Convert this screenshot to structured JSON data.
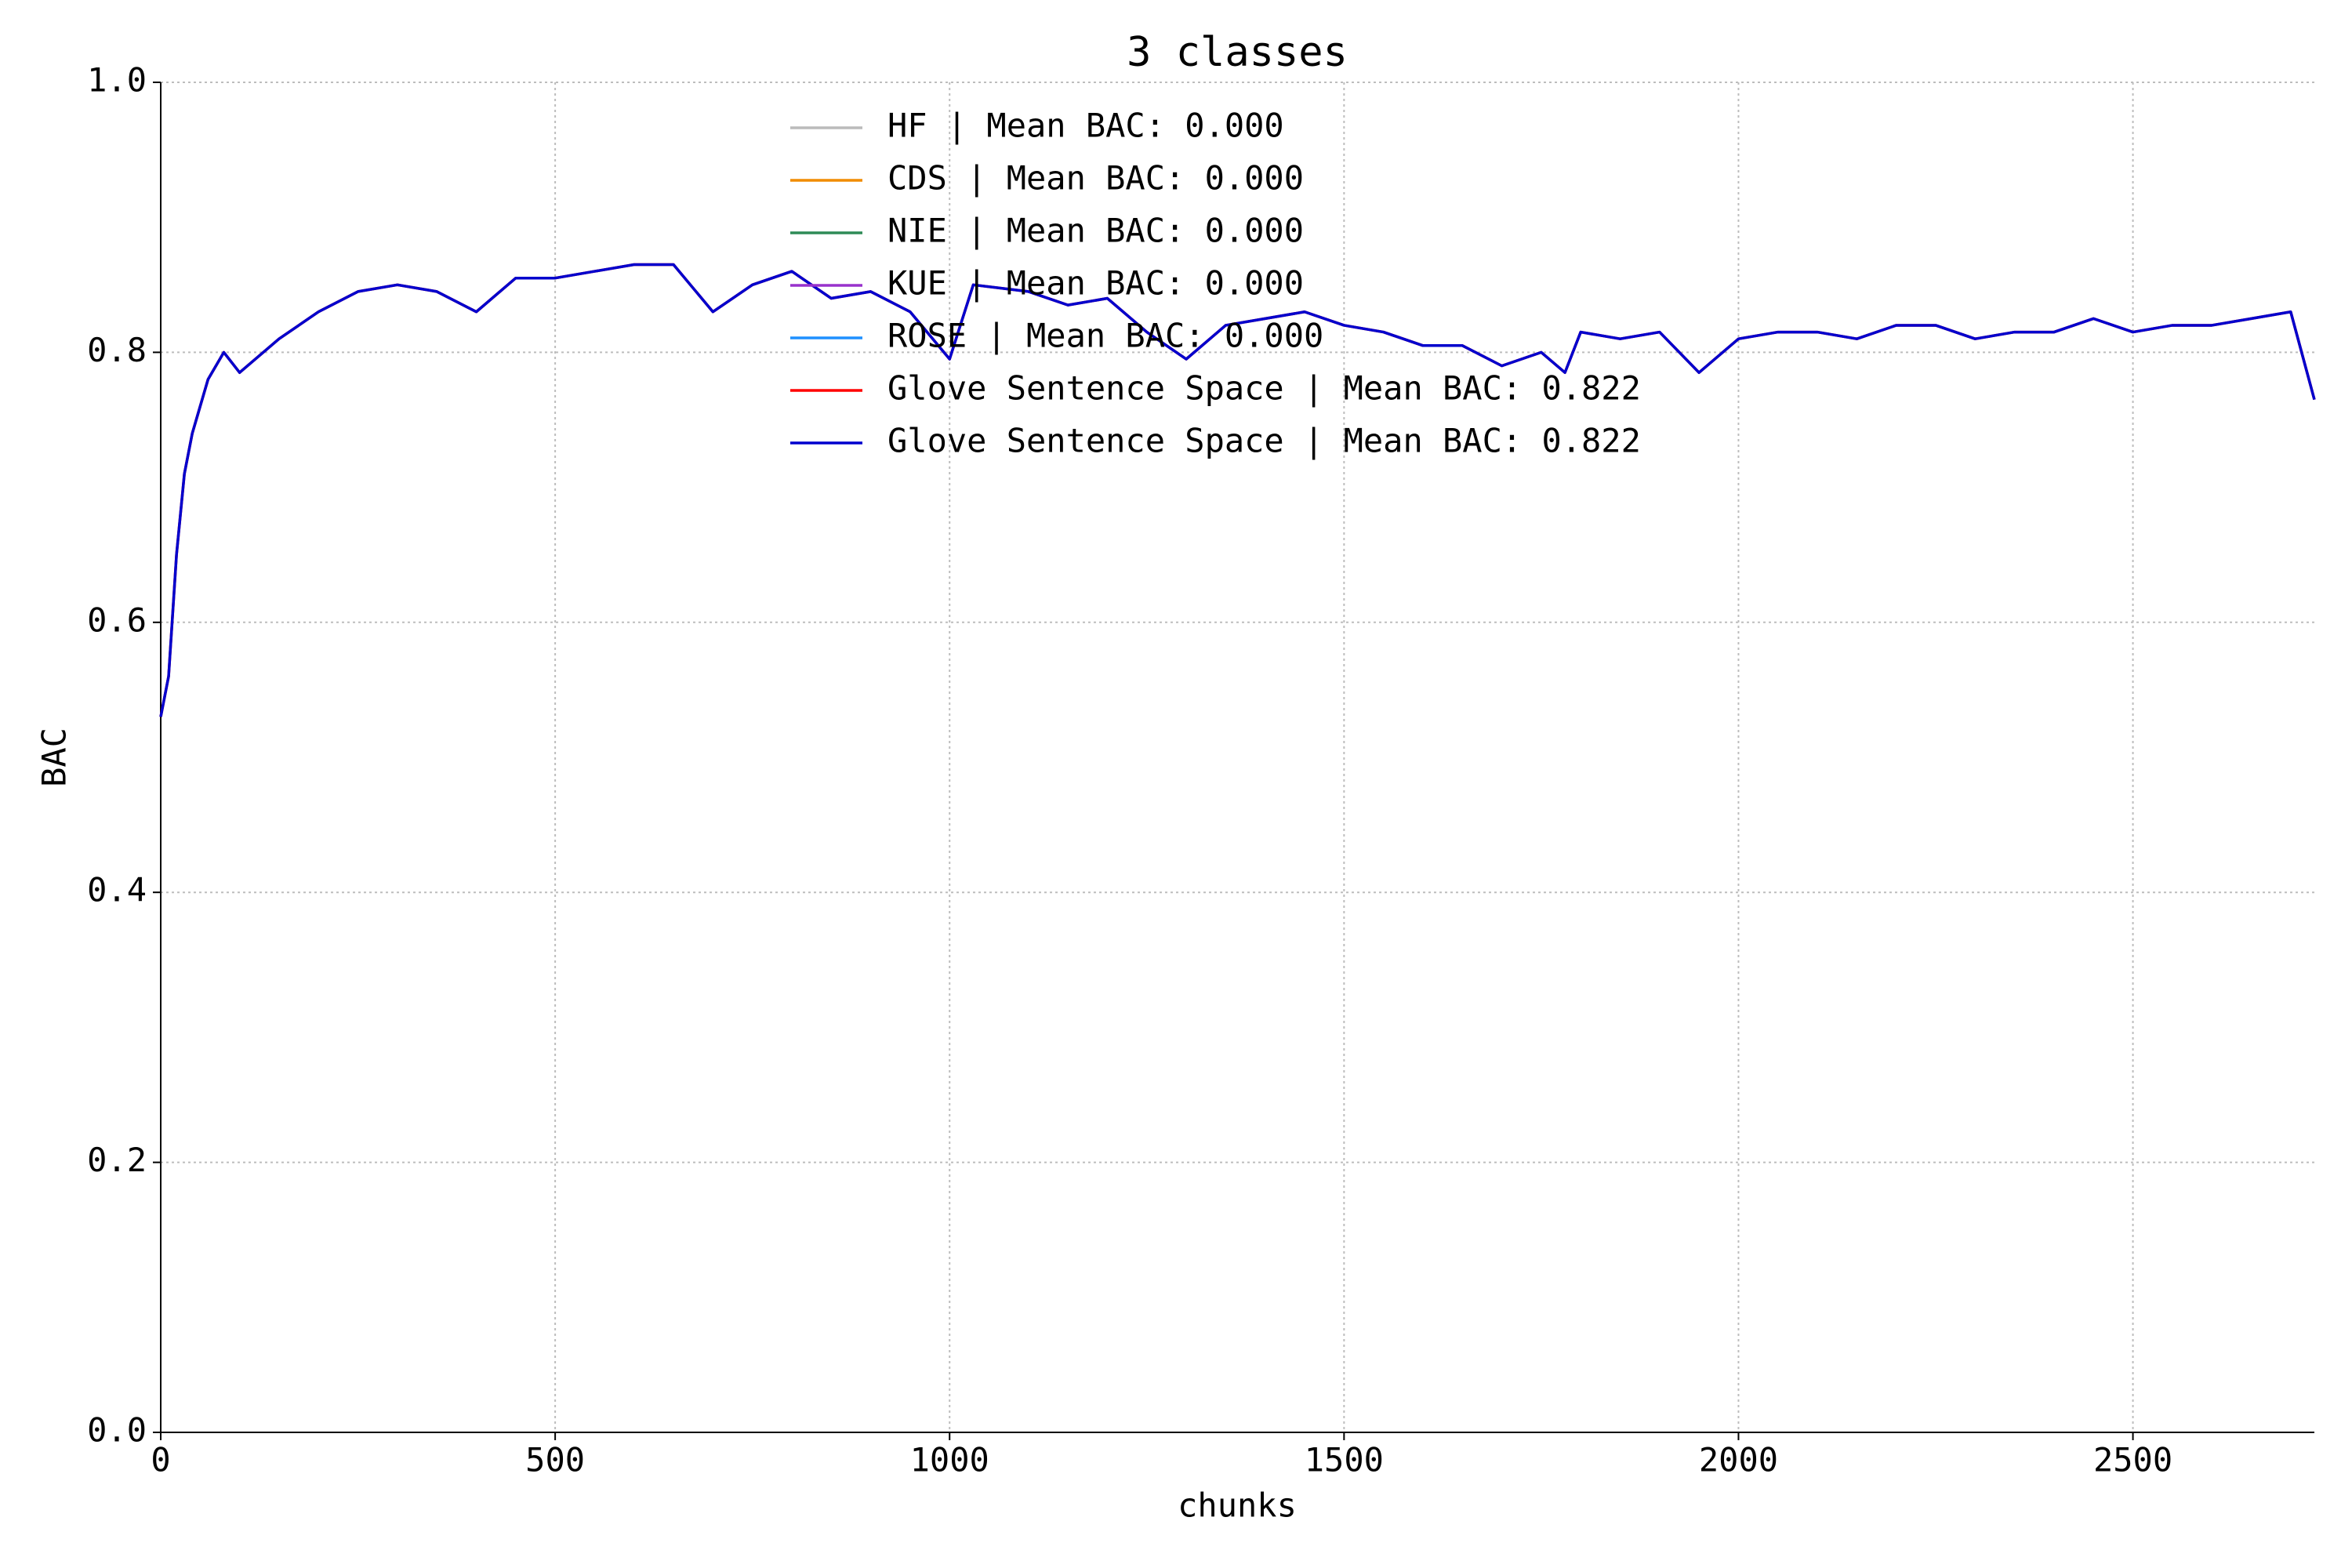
{
  "chart_data": {
    "type": "line",
    "title": "3 classes",
    "xlabel": "chunks",
    "ylabel": "BAC",
    "x": [
      0,
      10,
      20,
      30,
      40,
      50,
      60,
      80,
      100,
      150,
      200,
      250,
      300,
      350,
      400,
      450,
      500,
      550,
      600,
      650,
      700,
      750,
      800,
      850,
      900,
      950,
      1000,
      1030,
      1100,
      1150,
      1200,
      1250,
      1300,
      1350,
      1400,
      1450,
      1500,
      1550,
      1600,
      1650,
      1700,
      1750,
      1780,
      1800,
      1850,
      1900,
      1950,
      2000,
      2050,
      2100,
      2150,
      2200,
      2250,
      2300,
      2350,
      2400,
      2450,
      2500,
      2550,
      2600,
      2650,
      2700,
      2730
    ],
    "series": [
      {
        "name": "HF | Mean BAC: 0.000",
        "color": "#bbbbbb",
        "values": [
          null,
          null,
          null,
          null,
          null,
          null,
          null,
          null,
          null,
          null,
          null,
          null,
          null,
          null,
          null,
          null,
          null,
          null,
          null,
          null,
          null,
          null,
          null,
          null,
          null,
          null,
          null,
          null,
          null,
          null,
          null,
          null,
          null,
          null,
          null,
          null,
          null,
          null,
          null,
          null,
          null,
          null,
          null,
          null,
          null,
          null,
          null,
          null,
          null,
          null,
          null,
          null,
          null,
          null,
          null,
          null,
          null,
          null,
          null,
          null,
          null,
          null,
          null
        ]
      },
      {
        "name": "CDS | Mean BAC: 0.000",
        "color": "#f08c00",
        "values": [
          null,
          null,
          null,
          null,
          null,
          null,
          null,
          null,
          null,
          null,
          null,
          null,
          null,
          null,
          null,
          null,
          null,
          null,
          null,
          null,
          null,
          null,
          null,
          null,
          null,
          null,
          null,
          null,
          null,
          null,
          null,
          null,
          null,
          null,
          null,
          null,
          null,
          null,
          null,
          null,
          null,
          null,
          null,
          null,
          null,
          null,
          null,
          null,
          null,
          null,
          null,
          null,
          null,
          null,
          null,
          null,
          null,
          null,
          null,
          null,
          null,
          null,
          null
        ]
      },
      {
        "name": "NIE | Mean BAC: 0.000",
        "color": "#2e8b57",
        "values": [
          null,
          null,
          null,
          null,
          null,
          null,
          null,
          null,
          null,
          null,
          null,
          null,
          null,
          null,
          null,
          null,
          null,
          null,
          null,
          null,
          null,
          null,
          null,
          null,
          null,
          null,
          null,
          null,
          null,
          null,
          null,
          null,
          null,
          null,
          null,
          null,
          null,
          null,
          null,
          null,
          null,
          null,
          null,
          null,
          null,
          null,
          null,
          null,
          null,
          null,
          null,
          null,
          null,
          null,
          null,
          null,
          null,
          null,
          null,
          null,
          null,
          null,
          null
        ]
      },
      {
        "name": "KUE | Mean BAC: 0.000",
        "color": "#9932cc",
        "values": [
          null,
          null,
          null,
          null,
          null,
          null,
          null,
          null,
          null,
          null,
          null,
          null,
          null,
          null,
          null,
          null,
          null,
          null,
          null,
          null,
          null,
          null,
          null,
          null,
          null,
          null,
          null,
          null,
          null,
          null,
          null,
          null,
          null,
          null,
          null,
          null,
          null,
          null,
          null,
          null,
          null,
          null,
          null,
          null,
          null,
          null,
          null,
          null,
          null,
          null,
          null,
          null,
          null,
          null,
          null,
          null,
          null,
          null,
          null,
          null,
          null,
          null,
          null
        ]
      },
      {
        "name": "ROSE | Mean BAC: 0.000",
        "color": "#1e90ff",
        "values": [
          null,
          null,
          null,
          null,
          null,
          null,
          null,
          null,
          null,
          null,
          null,
          null,
          null,
          null,
          null,
          null,
          null,
          null,
          null,
          null,
          null,
          null,
          null,
          null,
          null,
          null,
          null,
          null,
          null,
          null,
          null,
          null,
          null,
          null,
          null,
          null,
          null,
          null,
          null,
          null,
          null,
          null,
          null,
          null,
          null,
          null,
          null,
          null,
          null,
          null,
          null,
          null,
          null,
          null,
          null,
          null,
          null,
          null,
          null,
          null,
          null,
          null,
          null
        ]
      },
      {
        "name": "Glove Sentence Space | Mean BAC: 0.822",
        "color": "#ff0000",
        "values": [
          0.53,
          0.56,
          0.65,
          0.71,
          0.74,
          0.76,
          0.78,
          0.8,
          0.785,
          0.81,
          0.83,
          0.845,
          0.85,
          0.845,
          0.83,
          0.855,
          0.855,
          0.86,
          0.865,
          0.865,
          0.83,
          0.85,
          0.86,
          0.84,
          0.845,
          0.83,
          0.795,
          0.85,
          0.845,
          0.835,
          0.84,
          0.815,
          0.795,
          0.82,
          0.825,
          0.83,
          0.82,
          0.815,
          0.805,
          0.805,
          0.79,
          0.8,
          0.785,
          0.815,
          0.81,
          0.815,
          0.785,
          0.81,
          0.815,
          0.815,
          0.81,
          0.82,
          0.82,
          0.81,
          0.815,
          0.815,
          0.825,
          0.815,
          0.82,
          0.82,
          0.825,
          0.83,
          0.765
        ]
      },
      {
        "name": "Glove Sentence Space | Mean BAC: 0.822",
        "color": "#0000cd",
        "values": [
          0.53,
          0.56,
          0.65,
          0.71,
          0.74,
          0.76,
          0.78,
          0.8,
          0.785,
          0.81,
          0.83,
          0.845,
          0.85,
          0.845,
          0.83,
          0.855,
          0.855,
          0.86,
          0.865,
          0.865,
          0.83,
          0.85,
          0.86,
          0.84,
          0.845,
          0.83,
          0.795,
          0.85,
          0.845,
          0.835,
          0.84,
          0.815,
          0.795,
          0.82,
          0.825,
          0.83,
          0.82,
          0.815,
          0.805,
          0.805,
          0.79,
          0.8,
          0.785,
          0.815,
          0.81,
          0.815,
          0.785,
          0.81,
          0.815,
          0.815,
          0.81,
          0.82,
          0.82,
          0.81,
          0.815,
          0.815,
          0.825,
          0.815,
          0.82,
          0.82,
          0.825,
          0.83,
          0.765
        ]
      }
    ],
    "xlim": [
      0,
      2730
    ],
    "xticks": [
      0,
      500,
      1000,
      1500,
      2000,
      2500
    ],
    "ylim": [
      0,
      1
    ],
    "yticks": [
      {
        "value": 0,
        "label": "0.0"
      },
      {
        "value": 0.2,
        "label": "0.2"
      },
      {
        "value": 0.4,
        "label": "0.4"
      },
      {
        "value": 0.6,
        "label": "0.6"
      },
      {
        "value": 0.8,
        "label": "0.8"
      },
      {
        "value": 1,
        "label": "1.0"
      }
    ],
    "grid": true
  }
}
